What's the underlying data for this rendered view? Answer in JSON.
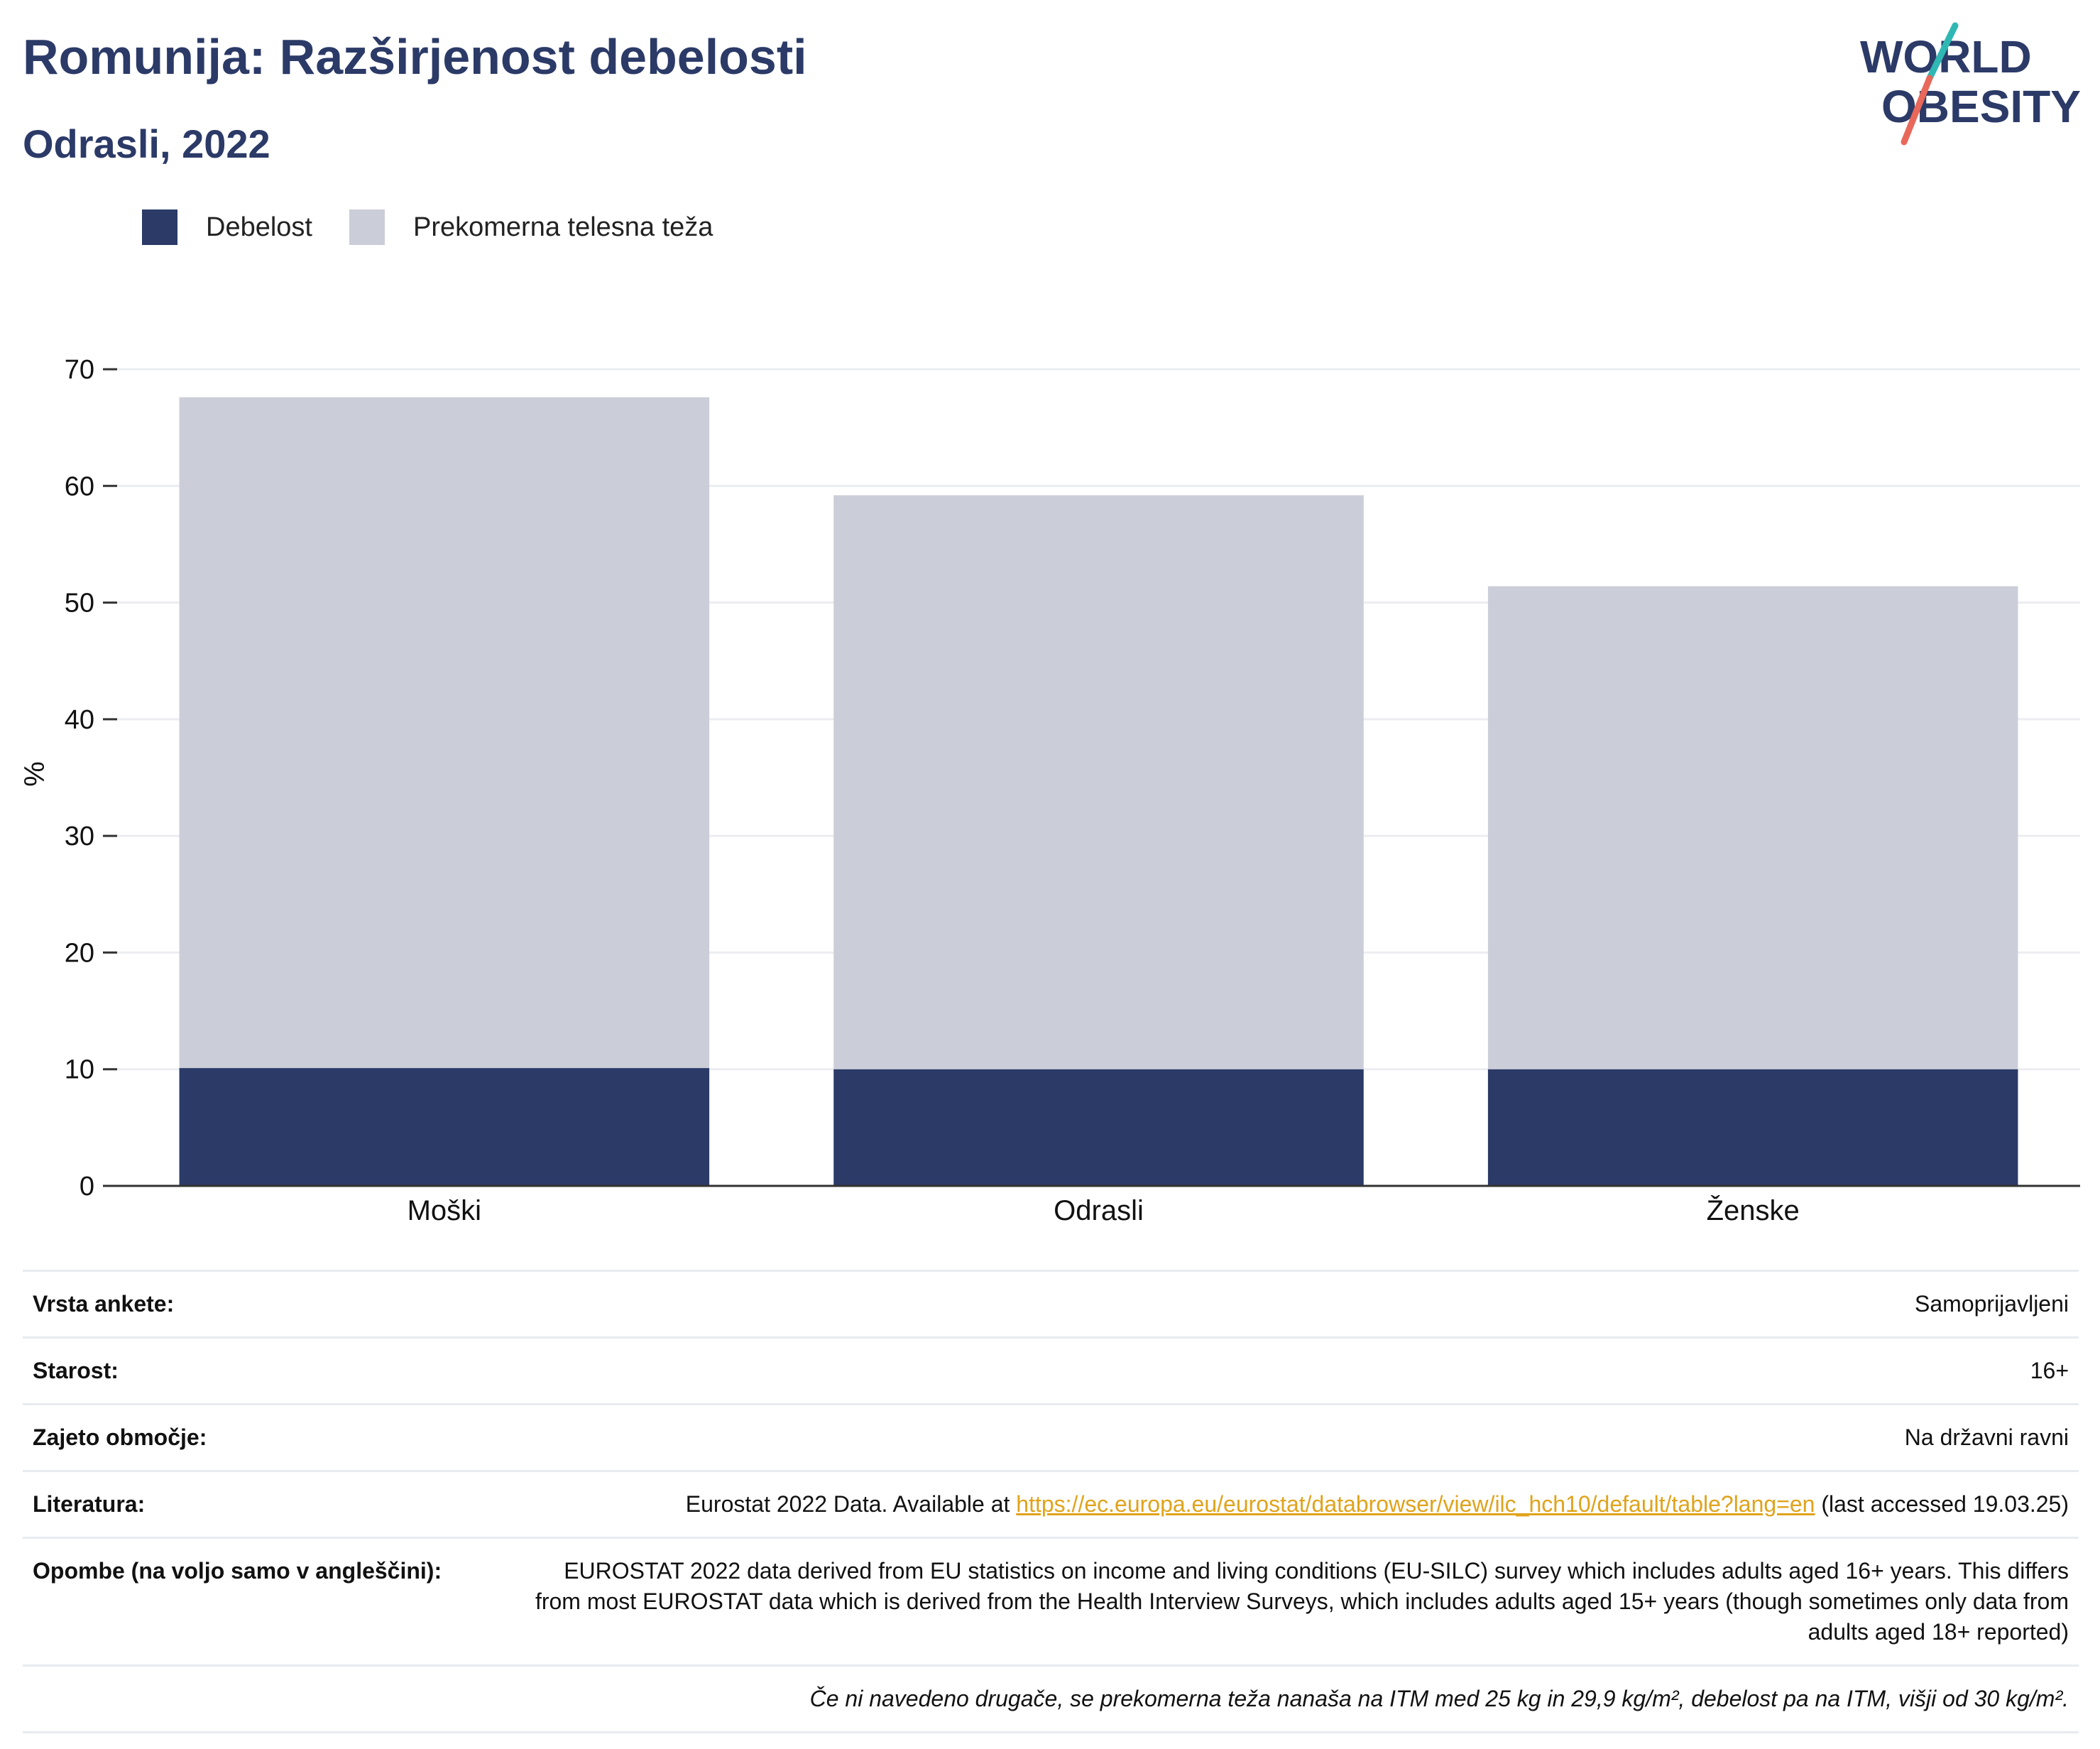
{
  "header": {
    "title": "Romunija: Razširjenost debelosti",
    "subtitle": "Odrasli, 2022"
  },
  "logo": {
    "line1": "WORLD",
    "line2": "OBESITY",
    "colors": {
      "text": "#2b3a67",
      "slash_top": "#2fb8b3",
      "slash_bottom": "#e8685a"
    }
  },
  "legend": {
    "items": [
      {
        "label": "Debelost",
        "color": "#2b3a67"
      },
      {
        "label": "Prekomerna telesna teža",
        "color": "#cbcdd8"
      }
    ]
  },
  "chart_data": {
    "type": "bar",
    "stacked": true,
    "categories": [
      "Moški",
      "Odrasli",
      "Ženske"
    ],
    "series": [
      {
        "name": "Debelost",
        "color": "#2b3a67",
        "values": [
          10.1,
          10.0,
          10.0
        ]
      },
      {
        "name": "Prekomerna telesna teža",
        "color": "#cbcdd8",
        "values": [
          57.5,
          49.2,
          41.4
        ]
      }
    ],
    "ylabel": "%",
    "ylim": [
      0,
      70
    ],
    "yticks": [
      0,
      10,
      20,
      30,
      40,
      50,
      60,
      70
    ],
    "grid": true,
    "legend_position": "top-left"
  },
  "info": {
    "survey_type": {
      "label": "Vrsta ankete:",
      "value": "Samoprijavljeni"
    },
    "age": {
      "label": "Starost:",
      "value": "16+"
    },
    "area": {
      "label": "Zajeto območje:",
      "value": "Na državni ravni"
    },
    "reference": {
      "label": "Literatura:",
      "prefix": "Eurostat 2022 Data. Available at ",
      "link": "https://ec.europa.eu/eurostat/databrowser/view/ilc_hch10/default/table?lang=en",
      "suffix": " (last accessed 19.03.25)"
    },
    "notes": {
      "label": "Opombe (na voljo samo v angleščini):",
      "value": "EUROSTAT 2022 data derived from EU statistics on income and living conditions (EU-SILC) survey which includes adults aged 16+ years. This differs from most EUROSTAT data which is derived from the Health Interview Surveys, which includes adults aged 15+ years (though sometimes only data from adults aged 18+ reported)"
    },
    "footnote": "Če ni navedeno drugače, se prekomerna teža nanaša na ITM med 25 kg in 29,9 kg/m², debelost pa na ITM, višji od 30 kg/m²."
  }
}
